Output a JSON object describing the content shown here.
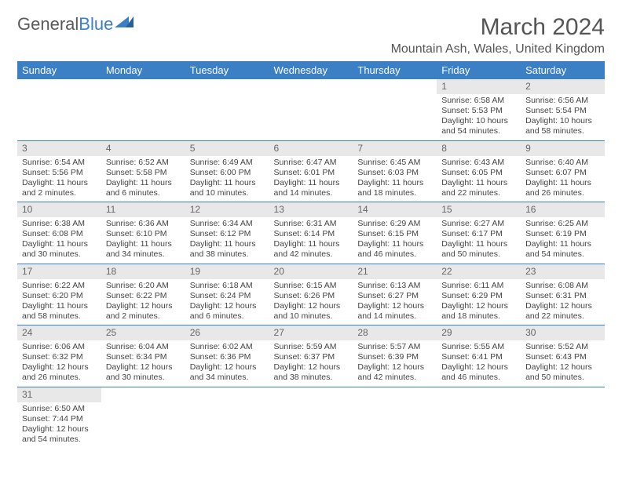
{
  "logo": {
    "text1": "General",
    "text2": "Blue"
  },
  "header": {
    "month": "March 2024",
    "location": "Mountain Ash, Wales, United Kingdom"
  },
  "colors": {
    "header_bg": "#3b7fc4",
    "header_text": "#ffffff",
    "daynum_bg": "#e8e8e8",
    "row_border": "#3b7fc4",
    "text": "#444444"
  },
  "weekdays": [
    "Sunday",
    "Monday",
    "Tuesday",
    "Wednesday",
    "Thursday",
    "Friday",
    "Saturday"
  ],
  "weeks": [
    [
      null,
      null,
      null,
      null,
      null,
      {
        "n": "1",
        "sunrise": "Sunrise: 6:58 AM",
        "sunset": "Sunset: 5:53 PM",
        "daylight": "Daylight: 10 hours and 54 minutes."
      },
      {
        "n": "2",
        "sunrise": "Sunrise: 6:56 AM",
        "sunset": "Sunset: 5:54 PM",
        "daylight": "Daylight: 10 hours and 58 minutes."
      }
    ],
    [
      {
        "n": "3",
        "sunrise": "Sunrise: 6:54 AM",
        "sunset": "Sunset: 5:56 PM",
        "daylight": "Daylight: 11 hours and 2 minutes."
      },
      {
        "n": "4",
        "sunrise": "Sunrise: 6:52 AM",
        "sunset": "Sunset: 5:58 PM",
        "daylight": "Daylight: 11 hours and 6 minutes."
      },
      {
        "n": "5",
        "sunrise": "Sunrise: 6:49 AM",
        "sunset": "Sunset: 6:00 PM",
        "daylight": "Daylight: 11 hours and 10 minutes."
      },
      {
        "n": "6",
        "sunrise": "Sunrise: 6:47 AM",
        "sunset": "Sunset: 6:01 PM",
        "daylight": "Daylight: 11 hours and 14 minutes."
      },
      {
        "n": "7",
        "sunrise": "Sunrise: 6:45 AM",
        "sunset": "Sunset: 6:03 PM",
        "daylight": "Daylight: 11 hours and 18 minutes."
      },
      {
        "n": "8",
        "sunrise": "Sunrise: 6:43 AM",
        "sunset": "Sunset: 6:05 PM",
        "daylight": "Daylight: 11 hours and 22 minutes."
      },
      {
        "n": "9",
        "sunrise": "Sunrise: 6:40 AM",
        "sunset": "Sunset: 6:07 PM",
        "daylight": "Daylight: 11 hours and 26 minutes."
      }
    ],
    [
      {
        "n": "10",
        "sunrise": "Sunrise: 6:38 AM",
        "sunset": "Sunset: 6:08 PM",
        "daylight": "Daylight: 11 hours and 30 minutes."
      },
      {
        "n": "11",
        "sunrise": "Sunrise: 6:36 AM",
        "sunset": "Sunset: 6:10 PM",
        "daylight": "Daylight: 11 hours and 34 minutes."
      },
      {
        "n": "12",
        "sunrise": "Sunrise: 6:34 AM",
        "sunset": "Sunset: 6:12 PM",
        "daylight": "Daylight: 11 hours and 38 minutes."
      },
      {
        "n": "13",
        "sunrise": "Sunrise: 6:31 AM",
        "sunset": "Sunset: 6:14 PM",
        "daylight": "Daylight: 11 hours and 42 minutes."
      },
      {
        "n": "14",
        "sunrise": "Sunrise: 6:29 AM",
        "sunset": "Sunset: 6:15 PM",
        "daylight": "Daylight: 11 hours and 46 minutes."
      },
      {
        "n": "15",
        "sunrise": "Sunrise: 6:27 AM",
        "sunset": "Sunset: 6:17 PM",
        "daylight": "Daylight: 11 hours and 50 minutes."
      },
      {
        "n": "16",
        "sunrise": "Sunrise: 6:25 AM",
        "sunset": "Sunset: 6:19 PM",
        "daylight": "Daylight: 11 hours and 54 minutes."
      }
    ],
    [
      {
        "n": "17",
        "sunrise": "Sunrise: 6:22 AM",
        "sunset": "Sunset: 6:20 PM",
        "daylight": "Daylight: 11 hours and 58 minutes."
      },
      {
        "n": "18",
        "sunrise": "Sunrise: 6:20 AM",
        "sunset": "Sunset: 6:22 PM",
        "daylight": "Daylight: 12 hours and 2 minutes."
      },
      {
        "n": "19",
        "sunrise": "Sunrise: 6:18 AM",
        "sunset": "Sunset: 6:24 PM",
        "daylight": "Daylight: 12 hours and 6 minutes."
      },
      {
        "n": "20",
        "sunrise": "Sunrise: 6:15 AM",
        "sunset": "Sunset: 6:26 PM",
        "daylight": "Daylight: 12 hours and 10 minutes."
      },
      {
        "n": "21",
        "sunrise": "Sunrise: 6:13 AM",
        "sunset": "Sunset: 6:27 PM",
        "daylight": "Daylight: 12 hours and 14 minutes."
      },
      {
        "n": "22",
        "sunrise": "Sunrise: 6:11 AM",
        "sunset": "Sunset: 6:29 PM",
        "daylight": "Daylight: 12 hours and 18 minutes."
      },
      {
        "n": "23",
        "sunrise": "Sunrise: 6:08 AM",
        "sunset": "Sunset: 6:31 PM",
        "daylight": "Daylight: 12 hours and 22 minutes."
      }
    ],
    [
      {
        "n": "24",
        "sunrise": "Sunrise: 6:06 AM",
        "sunset": "Sunset: 6:32 PM",
        "daylight": "Daylight: 12 hours and 26 minutes."
      },
      {
        "n": "25",
        "sunrise": "Sunrise: 6:04 AM",
        "sunset": "Sunset: 6:34 PM",
        "daylight": "Daylight: 12 hours and 30 minutes."
      },
      {
        "n": "26",
        "sunrise": "Sunrise: 6:02 AM",
        "sunset": "Sunset: 6:36 PM",
        "daylight": "Daylight: 12 hours and 34 minutes."
      },
      {
        "n": "27",
        "sunrise": "Sunrise: 5:59 AM",
        "sunset": "Sunset: 6:37 PM",
        "daylight": "Daylight: 12 hours and 38 minutes."
      },
      {
        "n": "28",
        "sunrise": "Sunrise: 5:57 AM",
        "sunset": "Sunset: 6:39 PM",
        "daylight": "Daylight: 12 hours and 42 minutes."
      },
      {
        "n": "29",
        "sunrise": "Sunrise: 5:55 AM",
        "sunset": "Sunset: 6:41 PM",
        "daylight": "Daylight: 12 hours and 46 minutes."
      },
      {
        "n": "30",
        "sunrise": "Sunrise: 5:52 AM",
        "sunset": "Sunset: 6:43 PM",
        "daylight": "Daylight: 12 hours and 50 minutes."
      }
    ],
    [
      {
        "n": "31",
        "sunrise": "Sunrise: 6:50 AM",
        "sunset": "Sunset: 7:44 PM",
        "daylight": "Daylight: 12 hours and 54 minutes."
      },
      null,
      null,
      null,
      null,
      null,
      null
    ]
  ]
}
